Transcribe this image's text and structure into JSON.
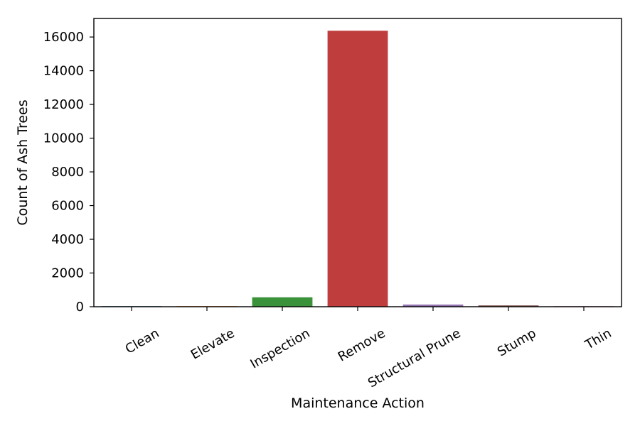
{
  "chart_data": {
    "type": "bar",
    "title": "",
    "xlabel": "Maintenance Action",
    "ylabel": "Count of Ash Trees",
    "categories": [
      "Clean",
      "Elevate",
      "Inspection",
      "Remove",
      "Structural Prune",
      "Stump",
      "Thin"
    ],
    "values": [
      5,
      3,
      560,
      16370,
      130,
      80,
      5
    ],
    "colors": [
      "#1f77b4",
      "#ff7f0e",
      "#3a923a",
      "#c03d3e",
      "#9372b2",
      "#845b53",
      "#d684bd"
    ],
    "ylim": [
      0,
      17100
    ],
    "yticks": [
      0,
      2000,
      4000,
      6000,
      8000,
      10000,
      12000,
      14000,
      16000
    ],
    "grid": false,
    "legend": "none"
  }
}
